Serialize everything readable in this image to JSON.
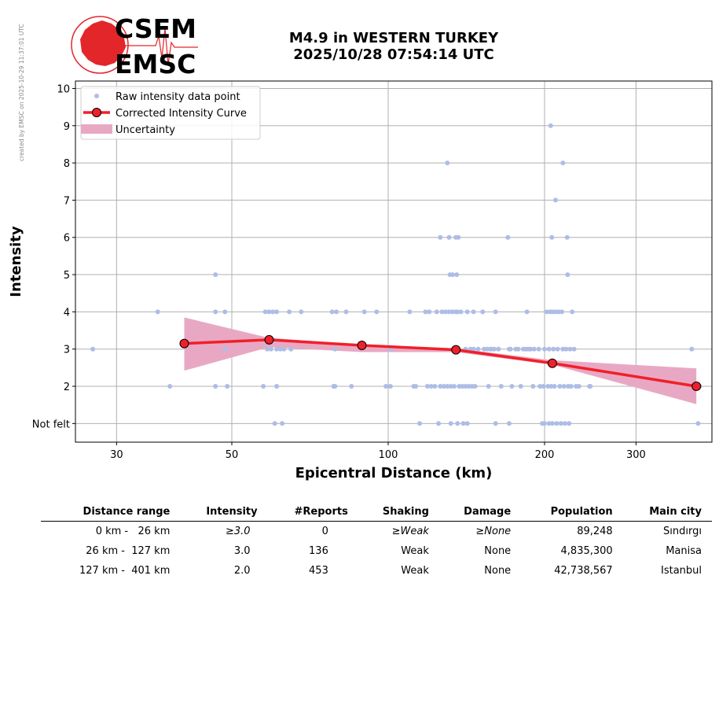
{
  "header": {
    "credit": "created by EMSC on 2025-10-29 11:37:01 UTC",
    "logo_top": "CSEM",
    "logo_bottom": "EMSC",
    "title_line1": "M4.9 in WESTERN TURKEY",
    "title_line2": "2025/10/28 07:54:14 UTC"
  },
  "colors": {
    "raw_points": "#aebde6",
    "curve": "#f0202a",
    "uncertainty": "#e8a8c3",
    "logo": "#e3262a"
  },
  "chart_data": {
    "type": "scatter",
    "xlabel": "Epicentral Distance (km)",
    "ylabel": "Intensity",
    "x_scale": "log",
    "xlim": [
      25,
      420
    ],
    "ylim": [
      0.5,
      10.2
    ],
    "x_ticks": [
      30,
      50,
      100,
      200,
      300
    ],
    "y_ticks": [
      {
        "value": 1,
        "label": "Not felt"
      },
      {
        "value": 2,
        "label": "2"
      },
      {
        "value": 3,
        "label": "3"
      },
      {
        "value": 4,
        "label": "4"
      },
      {
        "value": 5,
        "label": "5"
      },
      {
        "value": 6,
        "label": "6"
      },
      {
        "value": 7,
        "label": "7"
      },
      {
        "value": 8,
        "label": "8"
      },
      {
        "value": 9,
        "label": "9"
      },
      {
        "value": 10,
        "label": "10"
      }
    ],
    "grid": true,
    "legend_position": "top-left",
    "legend": {
      "raw": "Raw intensity data point",
      "curve": "Corrected Intensity Curve",
      "uncertainty": "Uncertainty"
    },
    "raw_points": [
      [
        27,
        3
      ],
      [
        36,
        4
      ],
      [
        38,
        2
      ],
      [
        46.5,
        5
      ],
      [
        46.5,
        4
      ],
      [
        46.5,
        2
      ],
      [
        48.5,
        4
      ],
      [
        48.5,
        3
      ],
      [
        49,
        2
      ],
      [
        57.5,
        2
      ],
      [
        58,
        4
      ],
      [
        58.5,
        3
      ],
      [
        59,
        4
      ],
      [
        59.5,
        3
      ],
      [
        60,
        4
      ],
      [
        60.5,
        1
      ],
      [
        61,
        4
      ],
      [
        61,
        3
      ],
      [
        61,
        2
      ],
      [
        62,
        3
      ],
      [
        62.5,
        1
      ],
      [
        63,
        3
      ],
      [
        64.5,
        4
      ],
      [
        65,
        3
      ],
      [
        68,
        4
      ],
      [
        78,
        4
      ],
      [
        78.5,
        2
      ],
      [
        79,
        3
      ],
      [
        79,
        2
      ],
      [
        79.5,
        4
      ],
      [
        83,
        4
      ],
      [
        85,
        2
      ],
      [
        90,
        4
      ],
      [
        95,
        4
      ],
      [
        99,
        2
      ],
      [
        101,
        2
      ],
      [
        101,
        3
      ],
      [
        110,
        4
      ],
      [
        112,
        2
      ],
      [
        113,
        2
      ],
      [
        115,
        1
      ],
      [
        118,
        4
      ],
      [
        119,
        2
      ],
      [
        120,
        4
      ],
      [
        121,
        2
      ],
      [
        123,
        2
      ],
      [
        124,
        4
      ],
      [
        125,
        1
      ],
      [
        126,
        2
      ],
      [
        126,
        6
      ],
      [
        127,
        4
      ],
      [
        128,
        2
      ],
      [
        129,
        4
      ],
      [
        130,
        8
      ],
      [
        130,
        2
      ],
      [
        131,
        4
      ],
      [
        131,
        6
      ],
      [
        131.5,
        5
      ],
      [
        132,
        1
      ],
      [
        132,
        2
      ],
      [
        133,
        4
      ],
      [
        133,
        5
      ],
      [
        134,
        2
      ],
      [
        135,
        4
      ],
      [
        135,
        6
      ],
      [
        135.5,
        5
      ],
      [
        136,
        4
      ],
      [
        136,
        1
      ],
      [
        136.5,
        6
      ],
      [
        137,
        2
      ],
      [
        138,
        4
      ],
      [
        139,
        2
      ],
      [
        139.5,
        1
      ],
      [
        141,
        2
      ],
      [
        141,
        3
      ],
      [
        142,
        4
      ],
      [
        142,
        1
      ],
      [
        143,
        2
      ],
      [
        144,
        3
      ],
      [
        145,
        2
      ],
      [
        146,
        4
      ],
      [
        146,
        3
      ],
      [
        147,
        2
      ],
      [
        149,
        3
      ],
      [
        152,
        4
      ],
      [
        153,
        3
      ],
      [
        155,
        3
      ],
      [
        156,
        2
      ],
      [
        157,
        3
      ],
      [
        158,
        3
      ],
      [
        160,
        3
      ],
      [
        161,
        4
      ],
      [
        161,
        1
      ],
      [
        163,
        3
      ],
      [
        165,
        2
      ],
      [
        170,
        6
      ],
      [
        171,
        3
      ],
      [
        171,
        1
      ],
      [
        172,
        3
      ],
      [
        173,
        2
      ],
      [
        176,
        3
      ],
      [
        178,
        3
      ],
      [
        180,
        2
      ],
      [
        182,
        3
      ],
      [
        184,
        3
      ],
      [
        185,
        4
      ],
      [
        186,
        3
      ],
      [
        188,
        3
      ],
      [
        190,
        2
      ],
      [
        191,
        3
      ],
      [
        195,
        3
      ],
      [
        196,
        2
      ],
      [
        198,
        1
      ],
      [
        199,
        2
      ],
      [
        200,
        1
      ],
      [
        200,
        3
      ],
      [
        202,
        4
      ],
      [
        203,
        2
      ],
      [
        204,
        1
      ],
      [
        204,
        3
      ],
      [
        205,
        4
      ],
      [
        205.5,
        9
      ],
      [
        206,
        2
      ],
      [
        206.5,
        6
      ],
      [
        207,
        4
      ],
      [
        207,
        1
      ],
      [
        208,
        3
      ],
      [
        209,
        2
      ],
      [
        210,
        4
      ],
      [
        210,
        7
      ],
      [
        211,
        1
      ],
      [
        212,
        3
      ],
      [
        213,
        4
      ],
      [
        214,
        2
      ],
      [
        215,
        1
      ],
      [
        216,
        4
      ],
      [
        217,
        3
      ],
      [
        217,
        8
      ],
      [
        218,
        2
      ],
      [
        219,
        1
      ],
      [
        220,
        3
      ],
      [
        221,
        6
      ],
      [
        221.5,
        5
      ],
      [
        222,
        2
      ],
      [
        223,
        1
      ],
      [
        224,
        3
      ],
      [
        225,
        2
      ],
      [
        226,
        4
      ],
      [
        228,
        3
      ],
      [
        230,
        2
      ],
      [
        233,
        2
      ],
      [
        244,
        2
      ],
      [
        245,
        2
      ],
      [
        384,
        3
      ],
      [
        395,
        1
      ],
      [
        398,
        2
      ]
    ],
    "corrected_curve": [
      {
        "x": 40.5,
        "y": 3.15
      },
      {
        "x": 59,
        "y": 3.25
      },
      {
        "x": 89,
        "y": 3.1
      },
      {
        "x": 135,
        "y": 2.98
      },
      {
        "x": 207,
        "y": 2.62
      },
      {
        "x": 392,
        "y": 2.0
      }
    ],
    "uncertainty_band": [
      {
        "x": 40.5,
        "low": 2.42,
        "high": 3.85
      },
      {
        "x": 59,
        "low": 3.05,
        "high": 3.3
      },
      {
        "x": 89,
        "low": 2.92,
        "high": 3.12
      },
      {
        "x": 135,
        "low": 2.92,
        "high": 3.02
      },
      {
        "x": 207,
        "low": 2.58,
        "high": 2.7
      },
      {
        "x": 392,
        "low": 1.52,
        "high": 2.48
      }
    ]
  },
  "summary_table": {
    "headers": {
      "distance": "Distance range",
      "intensity": "Intensity",
      "reports": "#Reports",
      "shaking": "Shaking",
      "damage": "Damage",
      "population": "Population",
      "city": "Main city"
    },
    "rows": [
      {
        "distance": "0 km -   26 km",
        "intensity": "≥3.0",
        "reports": "0",
        "shaking": "≥Weak",
        "damage": "≥None",
        "population": "89,248",
        "city": "Sındırgı"
      },
      {
        "distance": "26 km -  127 km",
        "intensity": "3.0",
        "reports": "136",
        "shaking": "Weak",
        "damage": "None",
        "population": "4,835,300",
        "city": "Manisa"
      },
      {
        "distance": "127 km -  401 km",
        "intensity": "2.0",
        "reports": "453",
        "shaking": "Weak",
        "damage": "None",
        "population": "42,738,567",
        "city": "Istanbul"
      }
    ]
  }
}
